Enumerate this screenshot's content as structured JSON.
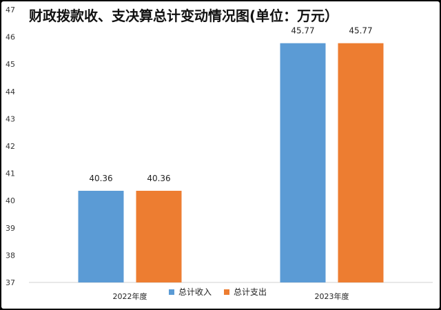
{
  "chart_data": {
    "type": "bar",
    "title": "财政拨款收、支决算总计变动情况图(单位：万元）",
    "categories": [
      "2022年度",
      "2023年度"
    ],
    "series": [
      {
        "name": "总计收入",
        "values": [
          40.36,
          45.77
        ],
        "color": "#5B9BD5"
      },
      {
        "name": "总计支出",
        "values": [
          40.36,
          45.77
        ],
        "color": "#ED7D31"
      }
    ],
    "data_labels": [
      [
        "40.36",
        "45.77"
      ],
      [
        "40.36",
        "45.77"
      ]
    ],
    "ylim": [
      37,
      47
    ],
    "yticks": [
      "37",
      "38",
      "39",
      "40",
      "41",
      "42",
      "43",
      "44",
      "45",
      "46",
      "47"
    ],
    "grid": false,
    "legend": "bottom",
    "xlabel": "",
    "ylabel": ""
  }
}
